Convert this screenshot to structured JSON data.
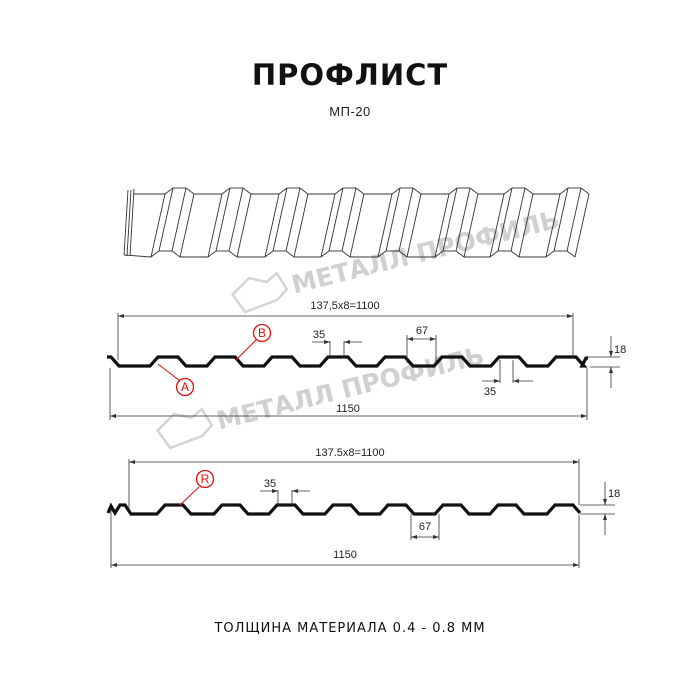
{
  "header": {
    "title": "ПРОФЛИСТ",
    "subtitle": "МП-20"
  },
  "watermark": {
    "text": "МЕТАЛЛ ПРОФИЛЬ",
    "icon": "house-logo-icon"
  },
  "profile_top": {
    "pitch_label": "137,5x8=1100",
    "width_label": "1150",
    "rib_top_label": "35",
    "rib_bottom_label": "35",
    "valley_label": "67",
    "height_label": "18",
    "markers": [
      "B",
      "A"
    ]
  },
  "profile_bottom": {
    "pitch_label": "137.5x8=1100",
    "width_label": "1150",
    "rib_top_label": "35",
    "valley_label": "67",
    "height_label": "18",
    "markers": [
      "R"
    ]
  },
  "footer": {
    "text": "ТОЛЩИНА МАТЕРИАЛА 0.4 - 0.8 ММ"
  },
  "colors": {
    "line": "#111111",
    "marker": "#e01010",
    "watermark": "#d0d0d0"
  }
}
